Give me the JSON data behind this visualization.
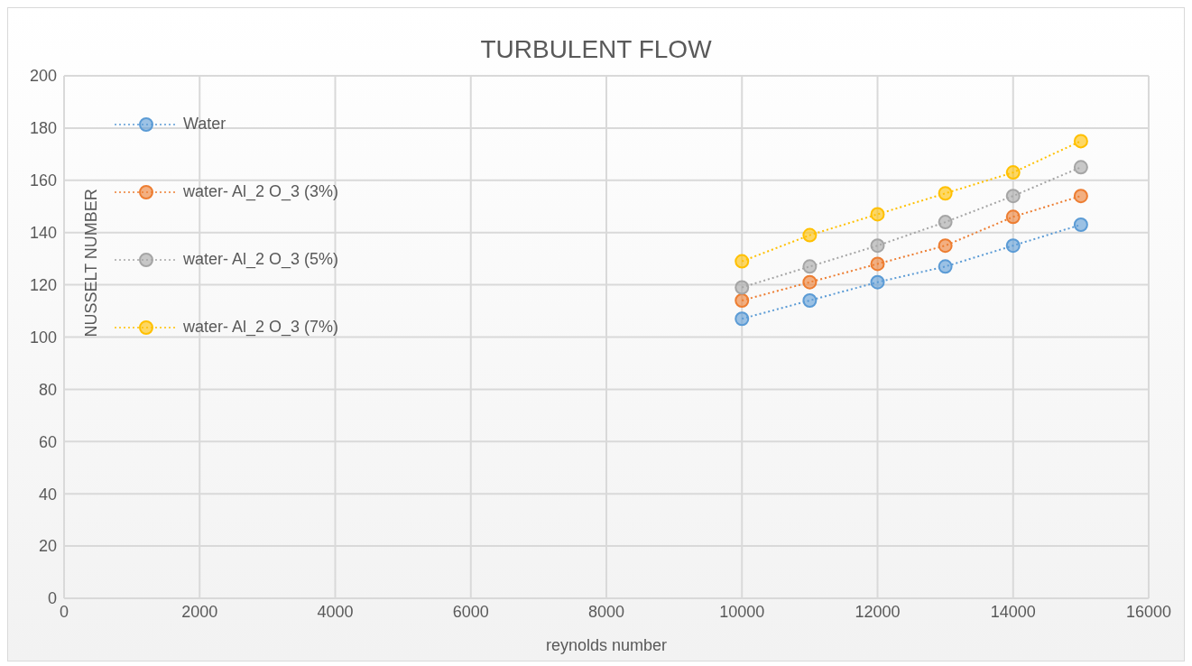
{
  "chart_data": {
    "type": "line",
    "title": "TURBULENT FLOW",
    "xlabel": "reynolds number",
    "ylabel": "NUSSELT NUMBER",
    "x": [
      10000,
      11000,
      12000,
      13000,
      14000,
      15000
    ],
    "series": [
      {
        "name": "Water",
        "color": "#5b9bd5",
        "values": [
          107,
          114,
          121,
          127,
          135,
          143
        ]
      },
      {
        "name": "water- Al_2 O_3 (3%)",
        "color": "#ed7d31",
        "values": [
          114,
          121,
          128,
          135,
          146,
          154
        ]
      },
      {
        "name": "water- Al_2 O_3 (5%)",
        "color": "#a5a5a5",
        "values": [
          119,
          127,
          135,
          144,
          154,
          165
        ]
      },
      {
        "name": "water- Al_2 O_3 (7%)",
        "color": "#ffc000",
        "values": [
          129,
          139,
          147,
          155,
          163,
          175
        ]
      }
    ],
    "xlim": [
      0,
      16000
    ],
    "xticks": [
      0,
      2000,
      4000,
      6000,
      8000,
      10000,
      12000,
      14000,
      16000
    ],
    "ylim": [
      0,
      200
    ],
    "yticks": [
      0,
      20,
      40,
      60,
      80,
      100,
      120,
      140,
      160,
      180,
      200
    ],
    "grid": true,
    "legend": "top left",
    "marker": "circle",
    "line_style": "dotted"
  }
}
